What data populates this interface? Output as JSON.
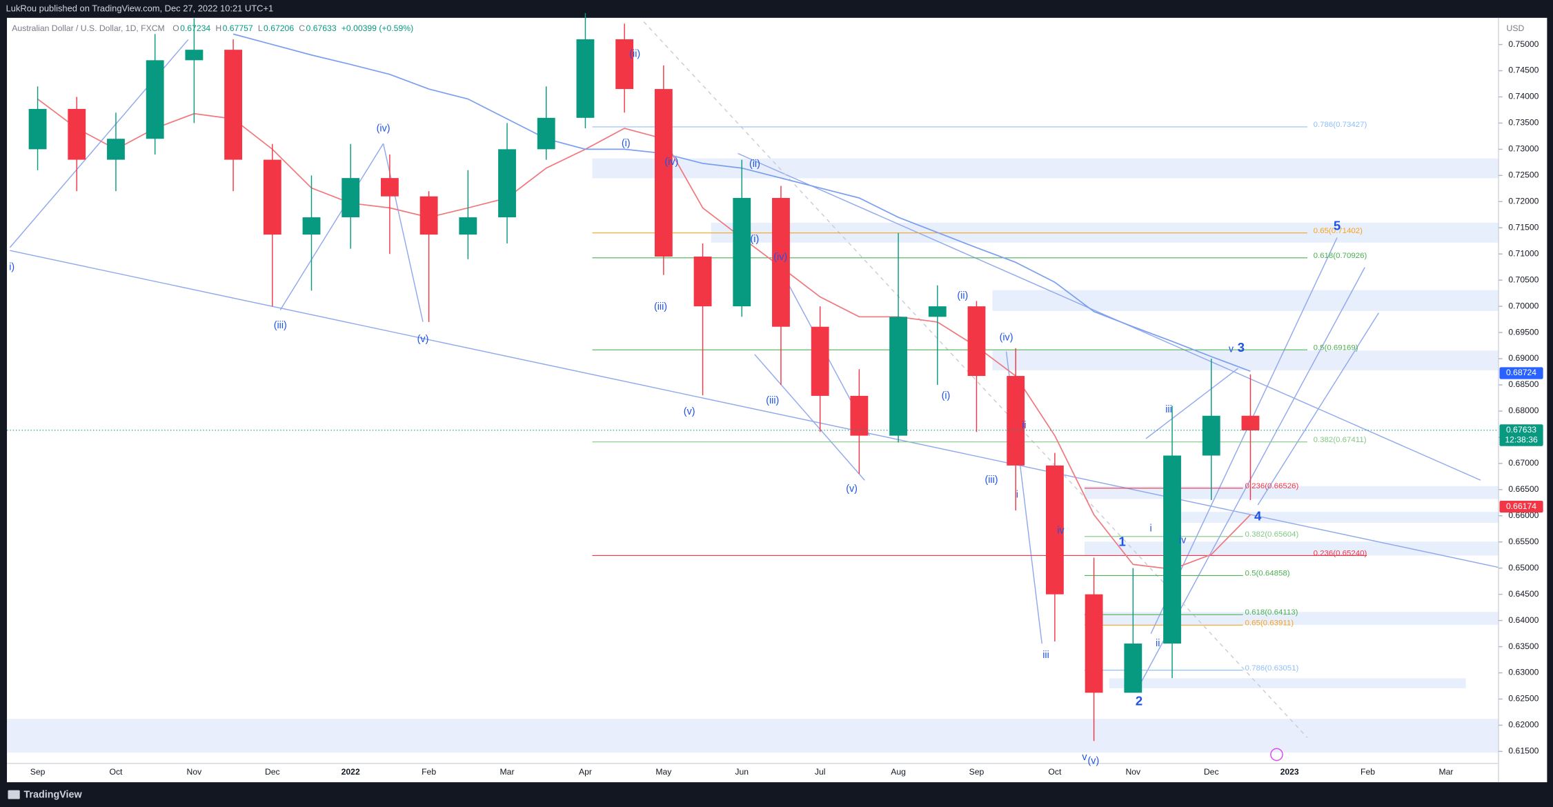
{
  "chart_data": {
    "type": "candlestick",
    "header": "LukRou published on TradingView.com, Dec 27, 2022 10:21 UTC+1",
    "symbol": "Australian Dollar / U.S. Dollar, 1D, FXCM",
    "ohlc_legend": [
      {
        "label": "O",
        "value": 0.67234
      },
      {
        "label": "H",
        "value": 0.67757
      },
      {
        "label": "L",
        "value": 0.67206
      },
      {
        "label": "C",
        "value": 0.67633
      }
    ],
    "change": "+0.00399 (+0.59%)",
    "currency": "USD",
    "brand": "TradingView",
    "categories": [
      "Sep",
      null,
      "Oct",
      null,
      "Nov",
      null,
      "Dec",
      null,
      "2022",
      null,
      "Feb",
      null,
      "Mar",
      null,
      "Apr",
      null,
      "May",
      null,
      "Jun",
      null,
      "Jul",
      null,
      "Aug",
      null,
      "Sep",
      null,
      "Oct",
      null,
      "Nov",
      null,
      "Dec",
      null,
      "2023",
      null,
      "Feb",
      null,
      "Mar"
    ],
    "open": [
      0.73,
      0.7377,
      0.728,
      0.732,
      0.747,
      0.749,
      0.728,
      0.7137,
      0.717,
      0.7245,
      0.721,
      0.7137,
      0.717,
      0.73,
      0.736,
      0.751,
      0.7415,
      0.7095,
      0.7,
      0.7207,
      0.6961,
      0.6829,
      0.6753,
      0.698,
      0.7,
      0.6867,
      0.6696,
      0.645,
      0.6262,
      0.6356,
      0.6715,
      0.6791,
      null,
      null,
      null,
      null,
      null
    ],
    "high": [
      0.742,
      0.74,
      0.737,
      0.752,
      0.755,
      0.751,
      0.731,
      0.725,
      0.731,
      0.729,
      0.722,
      0.726,
      0.735,
      0.742,
      0.756,
      0.754,
      0.746,
      0.712,
      0.728,
      0.723,
      0.7,
      0.688,
      0.714,
      0.704,
      0.701,
      0.692,
      0.672,
      0.652,
      0.65,
      0.681,
      0.69,
      0.687,
      null,
      null,
      null,
      null,
      null
    ],
    "low": [
      0.726,
      0.722,
      0.722,
      0.729,
      0.735,
      0.722,
      0.7,
      0.703,
      0.711,
      0.71,
      0.697,
      0.709,
      0.712,
      0.728,
      0.734,
      0.737,
      0.706,
      0.683,
      0.698,
      0.685,
      0.676,
      0.668,
      0.674,
      0.685,
      0.676,
      0.661,
      0.636,
      0.617,
      0.627,
      0.629,
      0.663,
      0.663,
      null,
      null,
      null,
      null,
      null
    ],
    "close": [
      0.7377,
      0.728,
      0.732,
      0.747,
      0.749,
      0.728,
      0.7137,
      0.717,
      0.7245,
      0.721,
      0.7137,
      0.717,
      0.73,
      0.736,
      0.751,
      0.7415,
      0.7095,
      0.7,
      0.7207,
      0.6961,
      0.6829,
      0.6753,
      0.698,
      0.7,
      0.6867,
      0.6696,
      0.645,
      0.6262,
      0.6356,
      0.6715,
      0.6791,
      0.6763,
      null,
      null,
      null,
      null,
      null
    ],
    "up_color": "#089981",
    "down_color": "#f23645",
    "moving_averages": [
      {
        "color": "#f0787d",
        "values": [
          0.7396,
          0.734,
          0.73,
          0.734,
          0.7368,
          0.7358,
          0.73,
          0.7226,
          0.7197,
          0.7188,
          0.717,
          0.7188,
          0.7207,
          0.7264,
          0.73,
          0.734,
          0.732,
          0.7188,
          0.7131,
          0.7075,
          0.7018,
          0.698,
          0.698,
          0.697,
          0.6923,
          0.6867,
          0.6753,
          0.6602,
          0.6507,
          0.6498,
          0.6526,
          0.6602,
          null,
          null,
          null,
          null,
          null
        ]
      },
      {
        "color": "#7a9ff0",
        "values": [
          null,
          null,
          null,
          null,
          null,
          0.752,
          0.75,
          0.748,
          0.7462,
          0.7443,
          0.7415,
          0.7396,
          0.7358,
          0.732,
          0.73,
          0.73,
          0.7292,
          0.7273,
          0.7264,
          0.7245,
          0.7226,
          0.7207,
          0.717,
          0.7141,
          0.7112,
          0.7084,
          0.7046,
          0.699,
          0.6961,
          0.6933,
          0.6904,
          0.6876,
          null,
          null,
          null,
          null,
          null
        ]
      }
    ],
    "ylim": [
      0.6127,
      0.7551
    ],
    "yticks": [
      {
        "value": 0.615,
        "label": "0.61500"
      },
      {
        "value": 0.62,
        "label": "0.62000"
      },
      {
        "value": 0.625,
        "label": "0.62500"
      },
      {
        "value": 0.63,
        "label": "0.63000"
      },
      {
        "value": 0.635,
        "label": "0.63500"
      },
      {
        "value": 0.64,
        "label": "0.64000"
      },
      {
        "value": 0.645,
        "label": "0.64500"
      },
      {
        "value": 0.65,
        "label": "0.65000"
      },
      {
        "value": 0.655,
        "label": "0.65500"
      },
      {
        "value": 0.66,
        "label": "0.66000"
      },
      {
        "value": 0.665,
        "label": "0.66500"
      },
      {
        "value": 0.67,
        "label": "0.67000"
      },
      {
        "value": 0.675,
        "label": "0.67500"
      },
      {
        "value": 0.68,
        "label": "0.68000"
      },
      {
        "value": 0.685,
        "label": "0.68500"
      },
      {
        "value": 0.69,
        "label": "0.69000"
      },
      {
        "value": 0.695,
        "label": "0.69500"
      },
      {
        "value": 0.7,
        "label": "0.70000"
      },
      {
        "value": 0.705,
        "label": "0.70500"
      },
      {
        "value": 0.71,
        "label": "0.71000"
      },
      {
        "value": 0.715,
        "label": "0.71500"
      },
      {
        "value": 0.72,
        "label": "0.72000"
      },
      {
        "value": 0.725,
        "label": "0.72500"
      },
      {
        "value": 0.73,
        "label": "0.73000"
      },
      {
        "value": 0.735,
        "label": "0.73500"
      },
      {
        "value": 0.74,
        "label": "0.74000"
      },
      {
        "value": 0.745,
        "label": "0.74500"
      },
      {
        "value": 0.75,
        "label": "0.75000"
      }
    ],
    "grid": false,
    "price_tags": [
      {
        "value": 0.68724,
        "label": "0.68724",
        "color": "#2962ff"
      },
      {
        "value": 0.67633,
        "label": "0.67633",
        "countdown": "12:38:36",
        "color": "#089981"
      },
      {
        "value": 0.66174,
        "label": "0.66174",
        "color": "#f23645"
      }
    ],
    "fib_retracements": [
      [
        {
          "value": 0.73427,
          "label": "0.786(0.73427)",
          "color": "#90bff9"
        },
        {
          "value": 0.71402,
          "label": "0.65(0.71402)",
          "color": "#f7a21b"
        },
        {
          "value": 0.70926,
          "label": "0.618(0.70926)",
          "color": "#4caf50"
        },
        {
          "value": 0.69169,
          "label": "0.5(0.69169)",
          "color": "#4caf50"
        },
        {
          "value": 0.67411,
          "label": "0.382(0.67411)",
          "color": "#81c784"
        },
        {
          "value": 0.6524,
          "label": "0.236(0.65240)",
          "color": "#f23645"
        }
      ],
      [
        {
          "value": 0.66526,
          "label": "0.236(0.66526)",
          "color": "#f23645"
        },
        {
          "value": 0.65604,
          "label": "0.382(0.65604)",
          "color": "#81c784"
        },
        {
          "value": 0.64858,
          "label": "0.5(0.64858)",
          "color": "#4caf50"
        },
        {
          "value": 0.64113,
          "label": "0.618(0.64113)",
          "color": "#4caf50"
        },
        {
          "value": 0.63911,
          "label": "0.65(0.63911)",
          "color": "#f7a21b"
        },
        {
          "value": 0.63051,
          "label": "0.786(0.63051)",
          "color": "#90bff9"
        }
      ]
    ],
    "wave_labels": [
      "i)",
      "(iii)",
      "(iv)",
      "(v)",
      "(ii)",
      "(i)",
      "(iv)",
      "(ii)",
      "(i)",
      "(iii)",
      "(v)",
      "(iv)",
      "(iii)",
      "(v)",
      "(ii)",
      "(i)",
      "(iv)",
      "(iii)",
      "ii",
      "i",
      "iv",
      "iii",
      "v",
      "(v)",
      "1",
      "i",
      "ii",
      "iii",
      "iv",
      "2",
      "v",
      "3",
      "4",
      "5"
    ]
  }
}
